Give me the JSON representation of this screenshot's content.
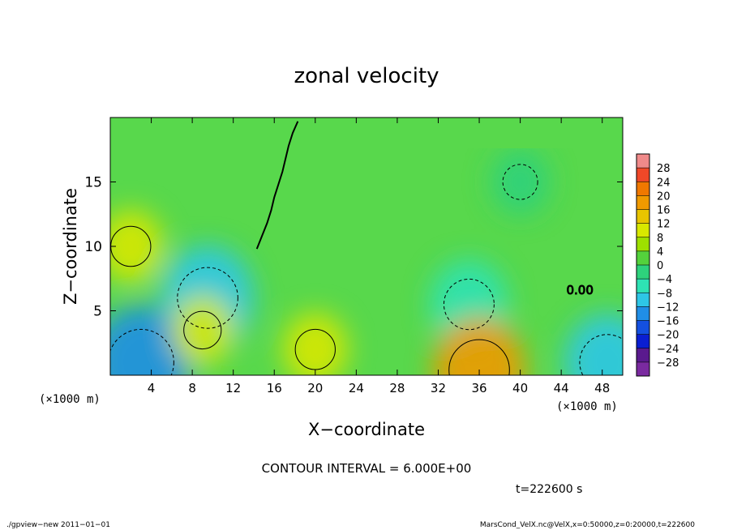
{
  "chart_data": {
    "type": "heatmap",
    "title": "zonal velocity",
    "xlabel": "X−coordinate",
    "ylabel": "Z−coordinate",
    "x_unit": "(×1000 m)",
    "y_unit": "(×1000 m)",
    "xlim": [
      0,
      50
    ],
    "ylim": [
      0,
      20
    ],
    "x_ticks": [
      4,
      8,
      12,
      16,
      20,
      24,
      28,
      32,
      36,
      40,
      44,
      48
    ],
    "y_ticks": [
      5,
      10,
      15
    ],
    "colorbar": {
      "labels": [
        "28",
        "24",
        "20",
        "16",
        "12",
        "8",
        "4",
        "0",
        "−4",
        "−8",
        "−12",
        "−16",
        "−20",
        "−24",
        "−28"
      ],
      "colors": [
        "#f08a8a",
        "#f04828",
        "#f07800",
        "#f09a00",
        "#e8c400",
        "#d8e800",
        "#9ee000",
        "#54d23c",
        "#2ed27c",
        "#2ee2b4",
        "#2ec6e6",
        "#208ee6",
        "#1450e0",
        "#0a1ed2",
        "#5a1a8e",
        "#7a2aa0"
      ]
    },
    "contour_interval_label": "CONTOUR INTERVAL = 6.000E+00",
    "contour_label": "0.00",
    "zero_contour_path": [
      [
        14.3,
        9.8
      ],
      [
        14.8,
        10.8
      ],
      [
        15.3,
        11.8
      ],
      [
        15.7,
        12.8
      ],
      [
        16.0,
        13.8
      ],
      [
        16.4,
        14.8
      ],
      [
        16.8,
        15.8
      ],
      [
        17.1,
        16.8
      ],
      [
        17.4,
        17.8
      ],
      [
        17.8,
        18.8
      ],
      [
        18.3,
        19.7
      ]
    ],
    "field_features": [
      {
        "x": 9.5,
        "z": 6.0,
        "value": -14
      },
      {
        "x": 35.0,
        "z": 5.5,
        "value": -10
      },
      {
        "x": 36.0,
        "z": 0.4,
        "value": 14
      },
      {
        "x": 3.0,
        "z": 1.0,
        "value": -16
      },
      {
        "x": 48.5,
        "z": 1.0,
        "value": -12
      },
      {
        "x": 2.0,
        "z": 10.0,
        "value": 6
      },
      {
        "x": 9.0,
        "z": 3.5,
        "value": 5
      },
      {
        "x": 20.0,
        "z": 2.0,
        "value": 6
      },
      {
        "x": 40.0,
        "z": 15.0,
        "value": -4
      }
    ],
    "time_label": "t=222600 s"
  },
  "footer": {
    "left": "./gpview−new   2011−01−01",
    "right": "MarsCond_VelX.nc@VelX,x=0:50000,z=0:20000,t=222600"
  }
}
